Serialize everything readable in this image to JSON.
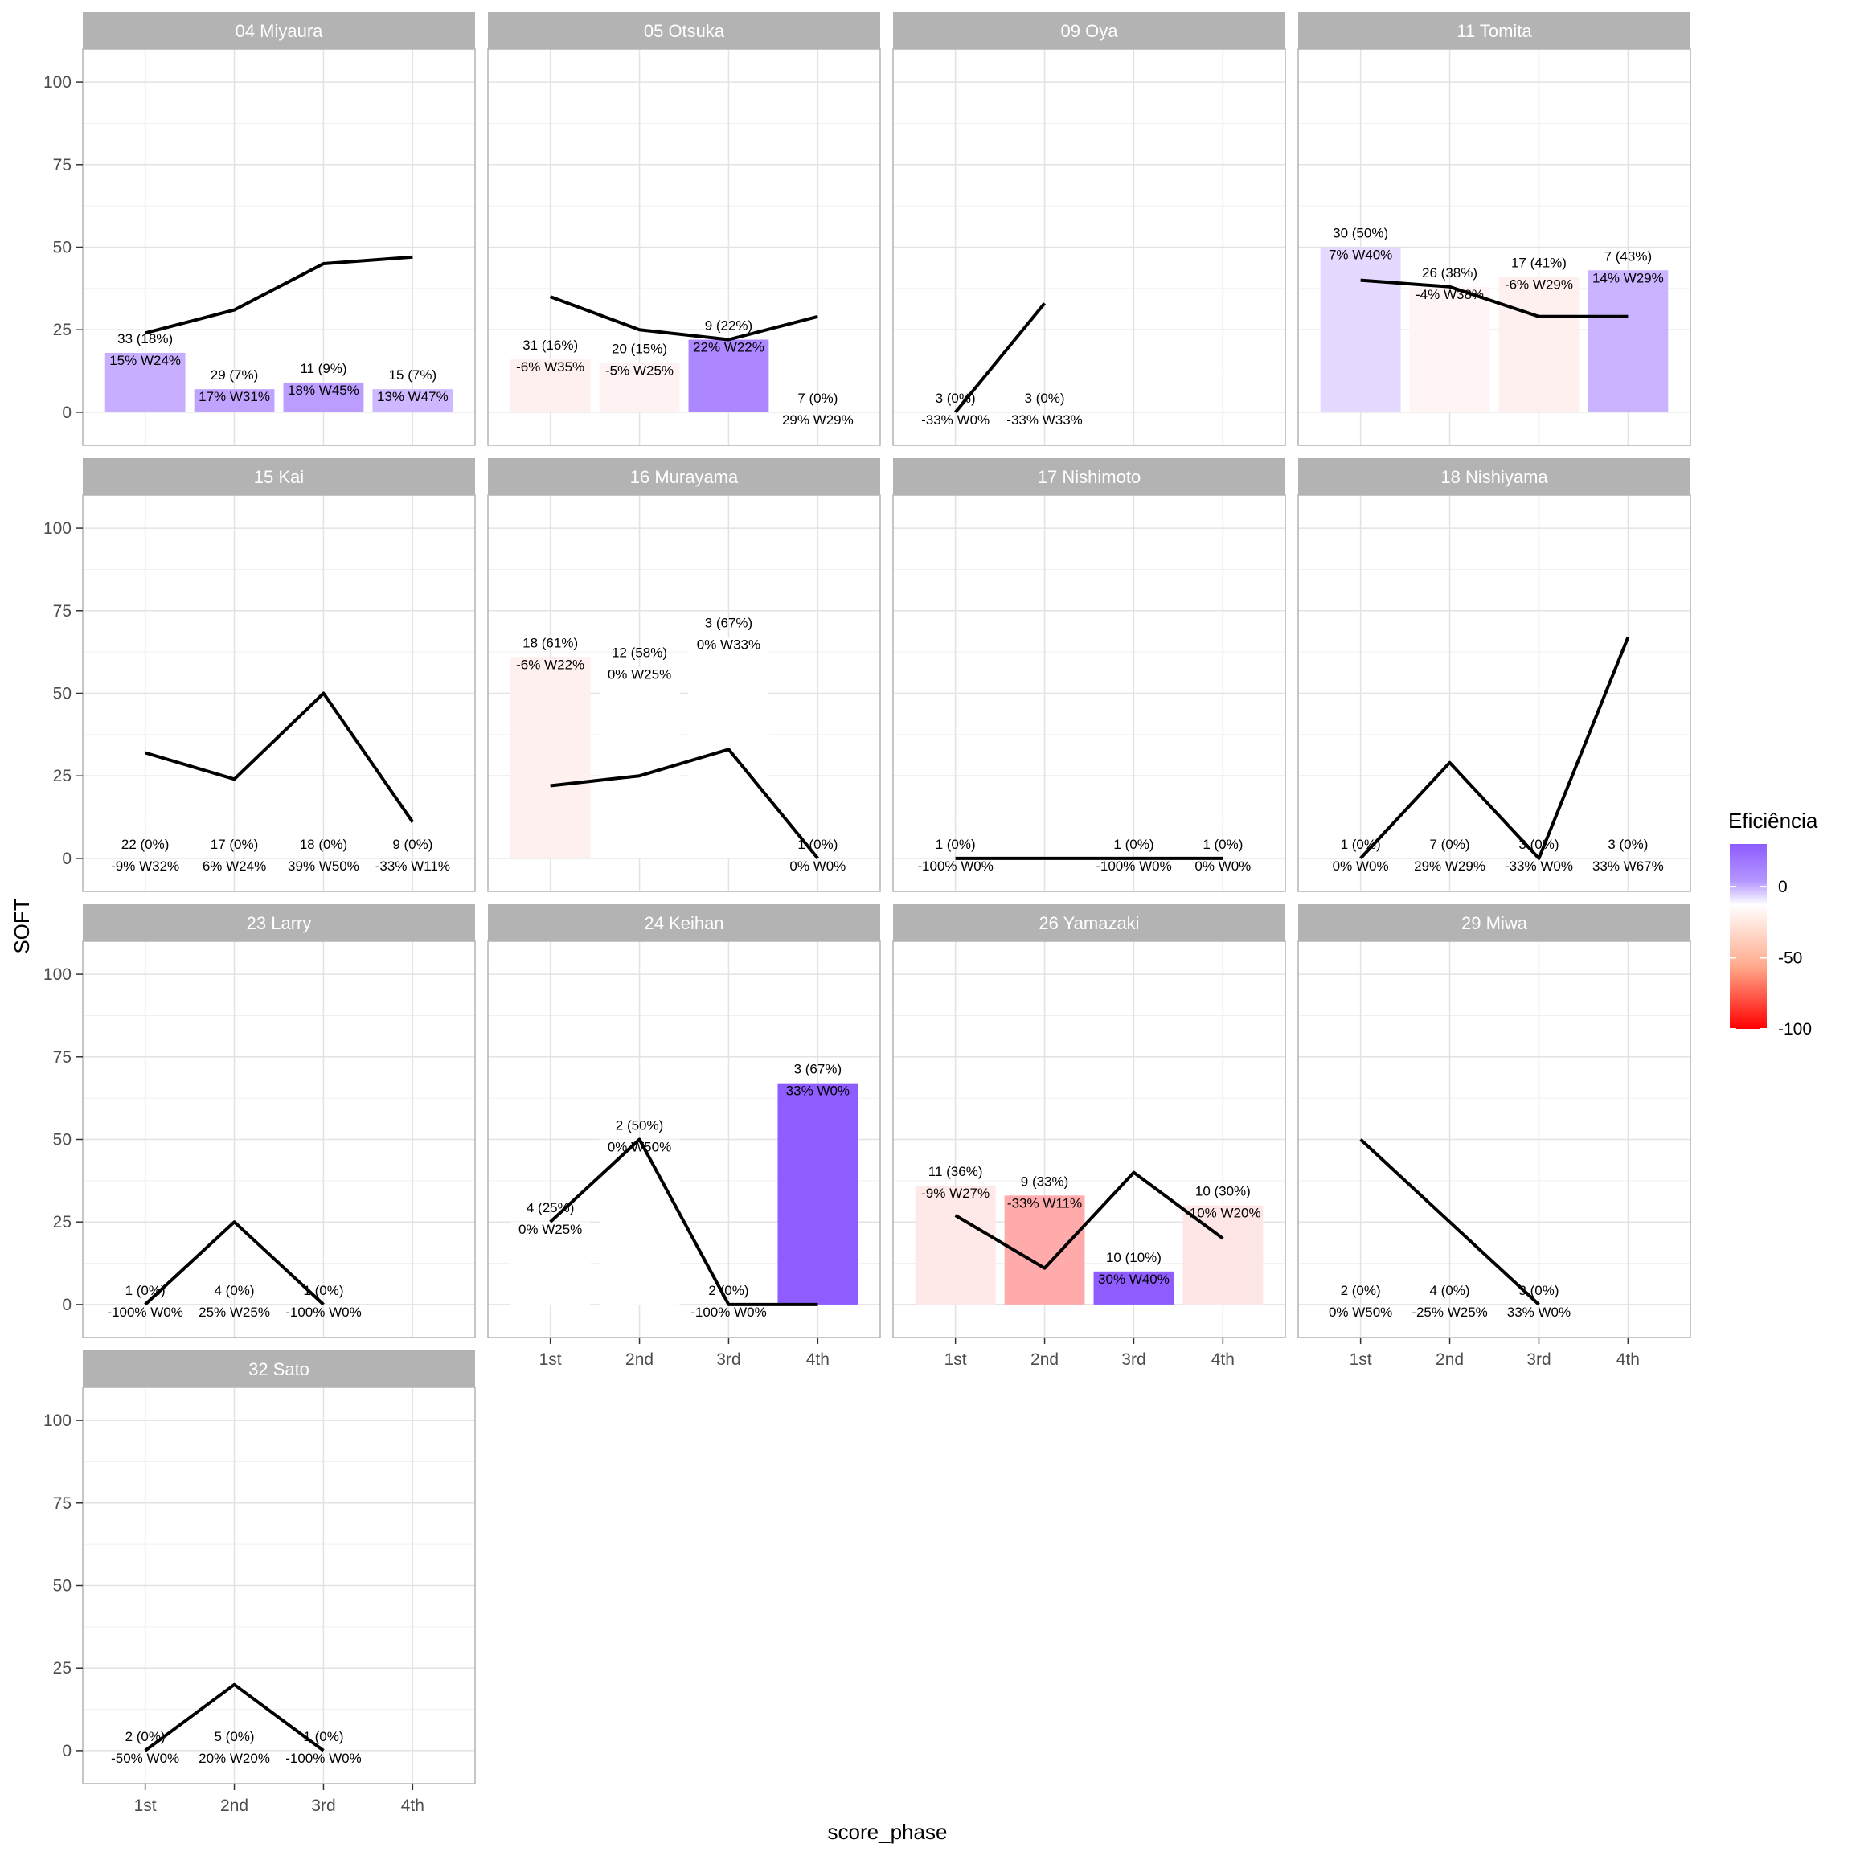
{
  "chart_data": {
    "type": "bar",
    "xlabel": "score_phase",
    "ylabel": "SOFT",
    "ylim": [
      -10,
      110
    ],
    "yticks": [
      0,
      25,
      50,
      75,
      100
    ],
    "categories": [
      "1st",
      "2nd",
      "3rd",
      "4th"
    ],
    "grid": true,
    "legend": {
      "title": "Eficiência",
      "position": "right",
      "ticks": [
        0,
        -50,
        -100
      ],
      "colors": {
        "high": "#8e5cff",
        "mid": "#ffffff",
        "low": "#ff0000"
      }
    },
    "line_color": "#000000",
    "strip_color": "#b3b3b3",
    "panels": [
      {
        "title": "04 Miyaura",
        "bars": [
          18,
          7,
          9,
          7
        ],
        "eff": [
          15,
          17,
          18,
          13
        ],
        "line": [
          24,
          31,
          45,
          47
        ],
        "label_top": [
          "33 (18%)",
          "29 (7%)",
          "11 (9%)",
          "15 (7%)"
        ],
        "label_bottom": [
          "15% W24%",
          "17% W31%",
          "18% W45%",
          "13% W47%"
        ]
      },
      {
        "title": "05 Otsuka",
        "bars": [
          16,
          15,
          22,
          0
        ],
        "eff": [
          -6,
          -5,
          22,
          29
        ],
        "line": [
          35,
          25,
          22,
          29
        ],
        "label_top": [
          "31 (16%)",
          "20 (15%)",
          "9 (22%)",
          "7 (0%)"
        ],
        "label_bottom": [
          "-6% W35%",
          "-5% W25%",
          "22% W22%",
          "29% W29%"
        ]
      },
      {
        "title": "09 Oya",
        "bars": [
          0,
          0,
          null,
          null
        ],
        "eff": [
          -33,
          -33,
          null,
          null
        ],
        "line": [
          0,
          33,
          null,
          null
        ],
        "label_top": [
          "3 (0%)",
          "3 (0%)",
          null,
          null
        ],
        "label_bottom": [
          "-33% W0%",
          "-33% W33%",
          null,
          null
        ]
      },
      {
        "title": "11 Tomita",
        "bars": [
          50,
          38,
          41,
          43
        ],
        "eff": [
          7,
          -4,
          -6,
          14
        ],
        "line": [
          40,
          38,
          29,
          29
        ],
        "label_top": [
          "30 (50%)",
          "26 (38%)",
          "17 (41%)",
          "7 (43%)"
        ],
        "label_bottom": [
          "7% W40%",
          "-4% W38%",
          "-6% W29%",
          "14% W29%"
        ]
      },
      {
        "title": "15 Kai",
        "bars": [
          0,
          0,
          0,
          0
        ],
        "eff": [
          -9,
          6,
          39,
          -33
        ],
        "line": [
          32,
          24,
          50,
          11
        ],
        "label_top": [
          "22 (0%)",
          "17 (0%)",
          "18 (0%)",
          "9 (0%)"
        ],
        "label_bottom": [
          "-9% W32%",
          "6% W24%",
          "39% W50%",
          "-33% W11%"
        ]
      },
      {
        "title": "16 Murayama",
        "bars": [
          61,
          58,
          67,
          0
        ],
        "eff": [
          -6,
          0,
          0,
          0
        ],
        "line": [
          22,
          25,
          33,
          0
        ],
        "label_top": [
          "18 (61%)",
          "12 (58%)",
          "3 (67%)",
          "1 (0%)"
        ],
        "label_bottom": [
          "-6% W22%",
          "0% W25%",
          "0% W33%",
          "0% W0%"
        ]
      },
      {
        "title": "17 Nishimoto",
        "bars": [
          0,
          null,
          0,
          0
        ],
        "eff": [
          -100,
          null,
          -100,
          0
        ],
        "line": [
          0,
          null,
          0,
          0
        ],
        "label_top": [
          "1 (0%)",
          null,
          "1 (0%)",
          "1 (0%)"
        ],
        "label_bottom": [
          "-100% W0%",
          null,
          "-100% W0%",
          "0% W0%"
        ]
      },
      {
        "title": "18 Nishiyama",
        "bars": [
          0,
          0,
          0,
          0
        ],
        "eff": [
          0,
          29,
          -33,
          33
        ],
        "line": [
          0,
          29,
          0,
          67
        ],
        "label_top": [
          "1 (0%)",
          "7 (0%)",
          "3 (0%)",
          "3 (0%)"
        ],
        "label_bottom": [
          "0% W0%",
          "29% W29%",
          "-33% W0%",
          "33% W67%"
        ]
      },
      {
        "title": "23 Larry",
        "bars": [
          0,
          0,
          0,
          null
        ],
        "eff": [
          -100,
          25,
          -100,
          null
        ],
        "line": [
          0,
          25,
          0,
          null
        ],
        "label_top": [
          "1 (0%)",
          "4 (0%)",
          "1 (0%)",
          null
        ],
        "label_bottom": [
          "-100% W0%",
          "25% W25%",
          "-100% W0%",
          null
        ]
      },
      {
        "title": "24 Keihan",
        "bars": [
          25,
          50,
          0,
          67
        ],
        "eff": [
          0,
          0,
          -100,
          33
        ],
        "line": [
          25,
          50,
          0,
          0
        ],
        "label_top": [
          "4 (25%)",
          "2 (50%)",
          "2 (0%)",
          "3 (67%)"
        ],
        "label_bottom": [
          "0% W25%",
          "0% W50%",
          "-100% W0%",
          "33% W0%"
        ]
      },
      {
        "title": "26 Yamazaki",
        "bars": [
          36,
          33,
          10,
          30
        ],
        "eff": [
          -9,
          -33,
          30,
          -10
        ],
        "line": [
          27,
          11,
          40,
          20
        ],
        "label_top": [
          "11 (36%)",
          "9 (33%)",
          "10 (10%)",
          "10 (30%)"
        ],
        "label_bottom": [
          "-9% W27%",
          "-33% W11%",
          "30% W40%",
          "-10% W20%"
        ]
      },
      {
        "title": "29 Miwa",
        "bars": [
          0,
          0,
          0,
          null
        ],
        "eff": [
          0,
          -25,
          33,
          null
        ],
        "line": [
          50,
          25,
          0,
          null
        ],
        "label_top": [
          "2 (0%)",
          "4 (0%)",
          "3 (0%)",
          null
        ],
        "label_bottom": [
          "0% W50%",
          "-25% W25%",
          "33% W0%",
          null
        ]
      },
      {
        "title": "32 Sato",
        "bars": [
          0,
          0,
          0,
          null
        ],
        "eff": [
          -50,
          20,
          -100,
          null
        ],
        "line": [
          0,
          20,
          0,
          null
        ],
        "label_top": [
          "2 (0%)",
          "5 (0%)",
          "1 (0%)",
          null
        ],
        "label_bottom": [
          "-50% W0%",
          "20% W20%",
          "-100% W0%",
          null
        ]
      }
    ]
  }
}
